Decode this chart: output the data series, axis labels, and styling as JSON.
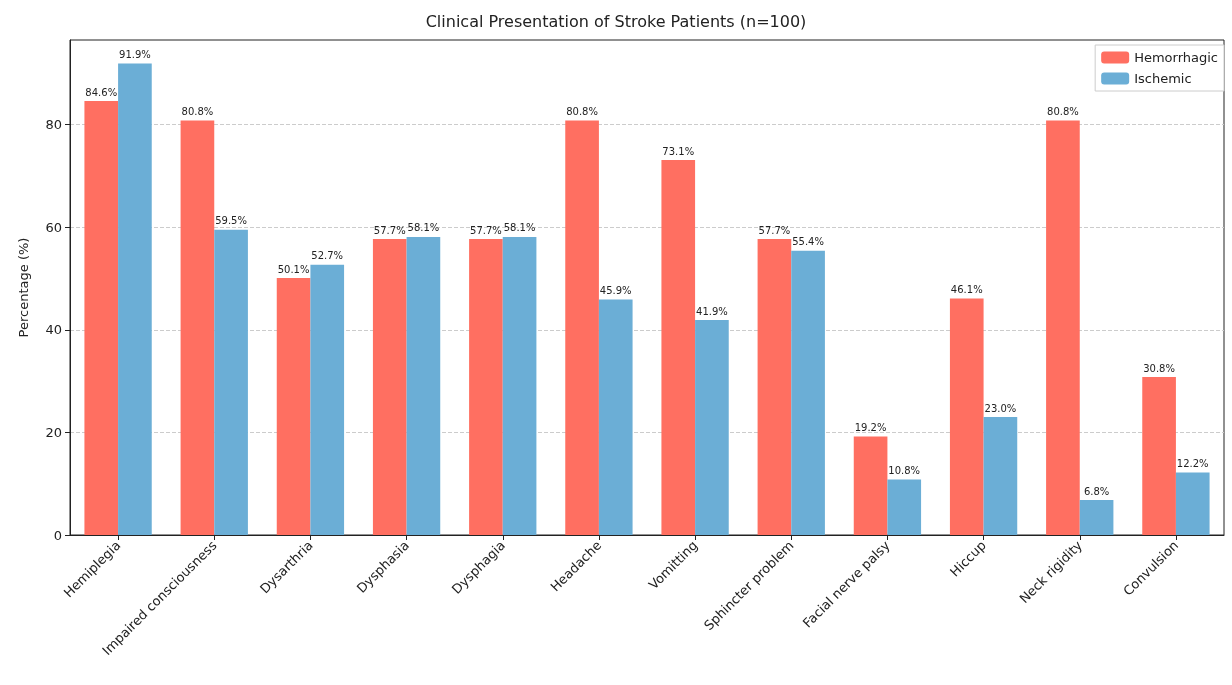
{
  "chart_data": {
    "type": "bar",
    "title": "Clinical Presentation of Stroke Patients (n=100)",
    "ylabel": "Percentage (%)",
    "categories": [
      "Hemiplegia",
      "Impaired consciousness",
      "Dysarthria",
      "Dysphasia",
      "Dysphagia",
      "Headache",
      "Vomitting",
      "Sphincter problem",
      "Facial nerve palsy",
      "Hiccup",
      "Neck rigidity",
      "Convulsion"
    ],
    "series": [
      {
        "name": "Hemorrhagic",
        "color": "#ff6f61",
        "values": [
          84.6,
          80.8,
          50.1,
          57.7,
          57.7,
          80.8,
          73.1,
          57.7,
          19.2,
          46.1,
          80.8,
          30.8
        ],
        "value_labels": [
          "84.6%",
          "80.8%",
          "50.1%",
          "57.7%",
          "57.7%",
          "80.8%",
          "73.1%",
          "57.7%",
          "19.2%",
          "46.1%",
          "80.8%",
          "30.8%"
        ]
      },
      {
        "name": "Ischemic",
        "color": "#6baed6",
        "values": [
          91.9,
          59.5,
          52.7,
          58.1,
          58.1,
          45.9,
          41.9,
          55.4,
          10.8,
          23.0,
          6.8,
          12.2
        ],
        "value_labels": [
          "91.9%",
          "59.5%",
          "52.7%",
          "58.1%",
          "58.1%",
          "45.9%",
          "41.9%",
          "55.4%",
          "10.8%",
          "23.0%",
          "6.8%",
          "12.2%"
        ]
      }
    ],
    "ylim": [
      0,
      96.5
    ],
    "yticks": [
      0,
      20,
      40,
      60,
      80
    ],
    "grid": "y",
    "legend": "top right"
  }
}
